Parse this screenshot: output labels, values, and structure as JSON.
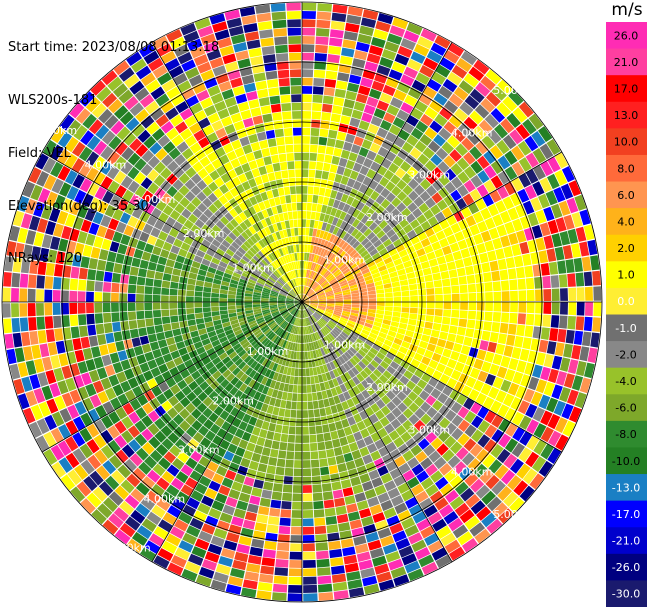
{
  "header": {
    "start_time": "Start time: 2023/08/08 01:13:18",
    "instrument": "WLS200s-181",
    "field": "Field: VEL",
    "elevation": "Elevation(deg): 35.30",
    "nrays": "NRays: 120"
  },
  "chart_data": {
    "type": "ppi",
    "title": "",
    "colorbar": {
      "unit": "m/s",
      "ticks": [
        "26.0",
        "21.0",
        "17.0",
        "13.0",
        "10.0",
        "8.0",
        "6.0",
        "4.0",
        "2.0",
        "1.0",
        "0.0",
        "-1.0",
        "-2.0",
        "-4.0",
        "-6.0",
        "-8.0",
        "-10.0",
        "-13.0",
        "-17.0",
        "-21.0",
        "-26.0",
        "-30.0"
      ],
      "colors": [
        "#ff2cb4",
        "#ff3fa0",
        "#ff0000",
        "#ff2020",
        "#f24020",
        "#ff6a3a",
        "#ff9550",
        "#ffb21a",
        "#ffd000",
        "#ffff00",
        "#ffee33",
        "#707070",
        "#888888",
        "#98c22a",
        "#7ea82a",
        "#2f8b2f",
        "#248024",
        "#1a7fc4",
        "#0000ff",
        "#0000cc",
        "#000080",
        "#1a1a6e"
      ]
    },
    "range_rings_km": [
      "1.00km",
      "2.00km",
      "3.00km",
      "4.00km",
      "5.00km"
    ],
    "n_rays": 120
  }
}
